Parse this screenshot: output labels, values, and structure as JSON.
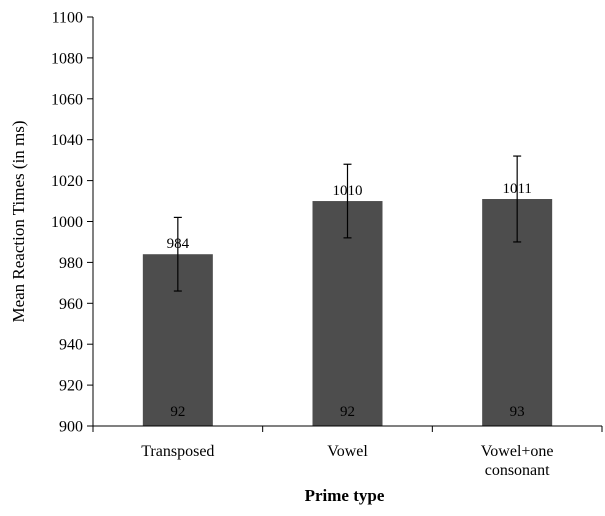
{
  "chart_data": {
    "type": "bar",
    "xlabel": "Prime type",
    "ylabel": "Mean Reaction Times (in ms)",
    "ylim": [
      900,
      1100
    ],
    "yticks": [
      900,
      920,
      940,
      960,
      980,
      1000,
      1020,
      1040,
      1060,
      1080,
      1100
    ],
    "categories": [
      [
        "Transposed"
      ],
      [
        "Vowel"
      ],
      [
        "Vowel+one",
        "consonant"
      ]
    ],
    "values": [
      984,
      1010,
      1011
    ],
    "value_labels": [
      "984",
      "1010",
      "1011"
    ],
    "error_bars": [
      {
        "low": 966,
        "high": 1002
      },
      {
        "low": 992,
        "high": 1028
      },
      {
        "low": 990,
        "high": 1032
      }
    ],
    "counts": [
      "92",
      "92",
      "93"
    ],
    "grid": false,
    "bar_color": "#4d4d4d"
  }
}
